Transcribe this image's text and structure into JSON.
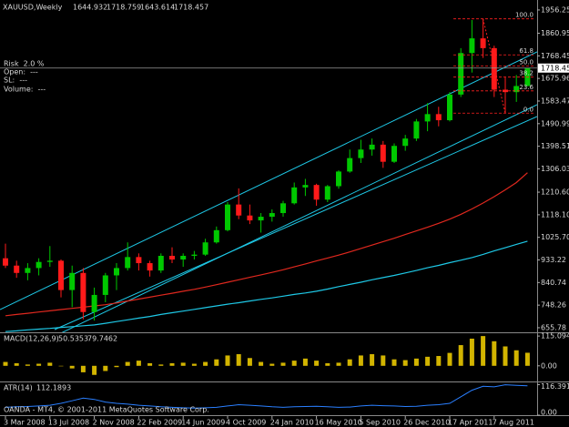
{
  "chart_data": {
    "type": "candlestick",
    "symbol": "XAUUSD,Weekly",
    "categories": [
      "3 Mar 2008",
      null,
      null,
      null,
      "13 Jul 2008",
      null,
      null,
      null,
      "2 Nov 2008",
      null,
      null,
      null,
      "22 Feb 2009",
      null,
      null,
      null,
      "14 Jun 2009",
      null,
      null,
      null,
      "4 Oct 2009",
      null,
      null,
      null,
      "24 Jan 2010",
      null,
      null,
      null,
      "16 May 2010",
      null,
      null,
      null,
      "5 Sep 2010",
      null,
      null,
      null,
      "26 Dec 2010",
      null,
      null,
      null,
      "17 Apr 2011",
      null,
      null,
      null,
      "7 Aug 2011",
      null,
      null,
      null
    ],
    "open": [
      940,
      910,
      880,
      900,
      925,
      930,
      810,
      880,
      720,
      790,
      870,
      900,
      945,
      920,
      890,
      950,
      935,
      950,
      955,
      1005,
      1055,
      1160,
      1115,
      1095,
      1110,
      1125,
      1165,
      1230,
      1240,
      1180,
      1235,
      1295,
      1350,
      1385,
      1405,
      1335,
      1400,
      1430,
      1500,
      1530,
      1505,
      1610,
      1780,
      1840,
      1800,
      1630,
      1620,
      1644.932
    ],
    "high": [
      1000,
      930,
      920,
      940,
      990,
      935,
      910,
      900,
      820,
      880,
      920,
      1005,
      960,
      930,
      960,
      985,
      960,
      970,
      1020,
      1070,
      1170,
      1226,
      1160,
      1125,
      1140,
      1175,
      1250,
      1265,
      1245,
      1240,
      1300,
      1385,
      1425,
      1430,
      1420,
      1410,
      1445,
      1510,
      1575,
      1560,
      1620,
      1800,
      1915,
      1920,
      1810,
      1680,
      1690,
      1718.759
    ],
    "low": [
      900,
      860,
      850,
      870,
      905,
      780,
      740,
      690,
      685,
      760,
      810,
      890,
      890,
      865,
      880,
      920,
      905,
      935,
      950,
      1000,
      1050,
      1100,
      1080,
      1045,
      1090,
      1110,
      1160,
      1195,
      1155,
      1170,
      1225,
      1290,
      1330,
      1360,
      1310,
      1330,
      1380,
      1420,
      1460,
      1480,
      1500,
      1600,
      1700,
      1760,
      1600,
      1535,
      1580,
      1643.614
    ],
    "close": [
      910,
      880,
      900,
      925,
      930,
      810,
      880,
      720,
      790,
      870,
      900,
      945,
      920,
      890,
      950,
      935,
      950,
      955,
      1005,
      1055,
      1160,
      1115,
      1095,
      1110,
      1125,
      1165,
      1230,
      1240,
      1180,
      1235,
      1295,
      1350,
      1385,
      1405,
      1335,
      1400,
      1430,
      1500,
      1530,
      1505,
      1610,
      1780,
      1840,
      1800,
      1630,
      1620,
      1645,
      1718.457
    ],
    "up_color": "#00c800",
    "down_color": "#ff1a1a",
    "ylim": [
      637,
      1997
    ],
    "yticks": [
      1956.25,
      1860.95,
      1768.45,
      1675.96,
      1583.47,
      1490.99,
      1398.51,
      1306.03,
      {
        "value": 1210.6,
        "label": "1210.60"
      },
      {
        "value": 1118.1,
        "label": "1118.10"
      },
      {
        "value": 1025.7,
        "label": "1025.70"
      },
      933.22,
      840.74,
      748.26,
      655.78
    ],
    "bid_label": "1718.45",
    "moving_averages": [
      {
        "color": "#e0281e",
        "values": [
          705,
          710,
          715,
          720,
          725,
          730,
          735,
          740,
          745,
          750,
          757,
          765,
          773,
          781,
          789,
          797,
          805,
          813,
          822,
          832,
          842,
          852,
          862,
          872,
          882,
          893,
          905,
          917,
          929,
          941,
          953,
          966,
          980,
          994,
          1008,
          1022,
          1037,
          1052,
          1067,
          1083,
          1100,
          1120,
          1142,
          1166,
          1192,
          1220,
          1250,
          1290
        ]
      },
      {
        "color": "#1ec8e6",
        "values": [
          640,
          643,
          647,
          650,
          653,
          657,
          660,
          664,
          667,
          674,
          681,
          688,
          695,
          702,
          710,
          717,
          724,
          731,
          738,
          745,
          752,
          758,
          765,
          772,
          778,
          785,
          792,
          798,
          805,
          814,
          824,
          833,
          842,
          852,
          861,
          870,
          880,
          890,
          901,
          911,
          922,
          932,
          943,
          956,
          970,
          983,
          997,
          1010
        ]
      }
    ],
    "fibonacci": {
      "high": 1920,
      "low": 1534,
      "color": "#ff2020",
      "levels": [
        {
          "value": 100,
          "label": "100.0"
        },
        61.8,
        {
          "value": 50,
          "label": "50.0"
        },
        38.2,
        23.6,
        {
          "value": 0,
          "label": "0.0"
        }
      ]
    },
    "info": [
      "Risk  2.0 %",
      "Open:  ---",
      "SL:  ---",
      "Volume:  ---"
    ],
    "macd": {
      "label": "MACD(12,26,9)",
      "signal": 79.7462,
      "color": "#d2b400",
      "values": [
        15,
        10,
        5,
        8,
        12,
        0,
        -10,
        -25,
        -35,
        -20,
        -5,
        15,
        20,
        10,
        5,
        10,
        12,
        8,
        15,
        25,
        40,
        45,
        30,
        15,
        8,
        12,
        20,
        28,
        20,
        10,
        12,
        25,
        40,
        45,
        40,
        25,
        22,
        28,
        35,
        38,
        50,
        80,
        105,
        115,
        95,
        75,
        60,
        50.5353
      ],
      "ylim": [
        -57,
        126
      ],
      "yticks": [
        115.094,
        {
          "value": 0,
          "label": "0.00"
        }
      ]
    },
    "atr": {
      "label": "ATR(14)",
      "color": "#2a7fff",
      "values": [
        30,
        32,
        33,
        35,
        38,
        45,
        55,
        65,
        60,
        50,
        45,
        42,
        38,
        35,
        32,
        30,
        28,
        27,
        28,
        30,
        35,
        40,
        38,
        35,
        32,
        30,
        32,
        33,
        34,
        32,
        30,
        31,
        35,
        38,
        36,
        35,
        33,
        34,
        38,
        40,
        45,
        70,
        95,
        110,
        108,
        116,
        114,
        112.1893
      ],
      "ylim": [
        0,
        125
      ],
      "yticks": [
        116.3916,
        {
          "value": 0,
          "label": "0.00"
        }
      ]
    },
    "footer": "OANDA - MT4, © 2001-2011 MetaQuotes Software Corp."
  }
}
